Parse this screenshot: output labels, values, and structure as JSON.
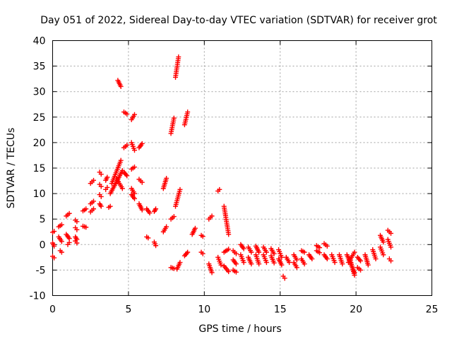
{
  "chart_data": {
    "type": "scatter",
    "title": "Day 051 of 2022, Sidereal Day-to-day VTEC variation (SDTVAR) for receiver grot",
    "xlabel": "GPS time / hours",
    "ylabel": "SDTVAR / TECUs",
    "xlim": [
      0,
      25
    ],
    "ylim": [
      -10,
      40
    ],
    "xticks": [
      0,
      5,
      10,
      15,
      20,
      25
    ],
    "yticks": [
      -10,
      -5,
      0,
      5,
      10,
      15,
      20,
      25,
      30,
      35,
      40
    ],
    "xtick_labels": [
      "0",
      "5",
      "10",
      "15",
      "20",
      "25"
    ],
    "ytick_labels": [
      "-10",
      "-5",
      "0",
      "5",
      "10",
      "15",
      "20",
      "25",
      "30",
      "35",
      "40"
    ],
    "grid": true,
    "marker": "+",
    "color": "#ff0000",
    "segments": [
      {
        "x": [
          0.0,
          0.1
        ],
        "y": [
          2.4,
          2.6
        ]
      },
      {
        "x": [
          0.0,
          0.1
        ],
        "y": [
          0.3,
          -0.3
        ]
      },
      {
        "x": [
          0.0,
          0.1
        ],
        "y": [
          -2.3,
          -2.6
        ]
      },
      {
        "x": [
          0.4,
          0.6
        ],
        "y": [
          3.5,
          3.9
        ]
      },
      {
        "x": [
          0.4,
          0.6
        ],
        "y": [
          1.5,
          0.6
        ]
      },
      {
        "x": [
          0.5,
          0.6
        ],
        "y": [
          -1.2,
          -1.5
        ]
      },
      {
        "x": [
          0.9,
          1.1
        ],
        "y": [
          5.6,
          6.1
        ]
      },
      {
        "x": [
          0.9,
          1.1
        ],
        "y": [
          2.0,
          1.2
        ]
      },
      {
        "x": [
          1.0,
          1.1
        ],
        "y": [
          0.0,
          0.4
        ]
      },
      {
        "x": [
          1.5,
          1.6
        ],
        "y": [
          4.8,
          4.5
        ]
      },
      {
        "x": [
          1.5,
          1.6
        ],
        "y": [
          3.3,
          2.9
        ]
      },
      {
        "x": [
          1.5,
          1.6
        ],
        "y": [
          1.5,
          1.0
        ]
      },
      {
        "x": [
          1.5,
          1.6
        ],
        "y": [
          0.7,
          0.3
        ]
      },
      {
        "x": [
          2.0,
          2.2
        ],
        "y": [
          6.6,
          7.0
        ]
      },
      {
        "x": [
          2.0,
          2.2
        ],
        "y": [
          3.6,
          3.4
        ]
      },
      {
        "x": [
          2.5,
          2.7
        ],
        "y": [
          12.0,
          12.6
        ]
      },
      {
        "x": [
          2.5,
          2.7
        ],
        "y": [
          8.0,
          8.5
        ]
      },
      {
        "x": [
          2.5,
          2.7
        ],
        "y": [
          6.4,
          7.0
        ]
      },
      {
        "x": [
          3.1,
          3.2
        ],
        "y": [
          14.2,
          13.8
        ]
      },
      {
        "x": [
          3.1,
          3.2
        ],
        "y": [
          11.8,
          11.4
        ]
      },
      {
        "x": [
          3.1,
          3.2
        ],
        "y": [
          9.8,
          9.4
        ]
      },
      {
        "x": [
          3.1,
          3.2
        ],
        "y": [
          8.0,
          7.5
        ]
      },
      {
        "x": [
          3.5,
          3.6
        ],
        "y": [
          12.6,
          13.2
        ]
      },
      {
        "x": [
          3.5,
          3.6
        ],
        "y": [
          10.8,
          11.2
        ]
      },
      {
        "x": [
          3.7,
          3.8
        ],
        "y": [
          7.3,
          7.5
        ]
      },
      {
        "x": [
          3.8,
          4.6
        ],
        "y": [
          10.0,
          14.5
        ]
      },
      {
        "x": [
          3.9,
          4.5
        ],
        "y": [
          12.0,
          16.5
        ]
      },
      {
        "x": [
          4.2,
          4.6
        ],
        "y": [
          13.0,
          11.0
        ]
      },
      {
        "x": [
          4.3,
          4.5
        ],
        "y": [
          32.2,
          31.0
        ]
      },
      {
        "x": [
          4.7,
          4.9
        ],
        "y": [
          14.2,
          13.5
        ]
      },
      {
        "x": [
          4.7,
          4.9
        ],
        "y": [
          19.0,
          19.5
        ]
      },
      {
        "x": [
          4.7,
          4.9
        ],
        "y": [
          26.0,
          25.6
        ]
      },
      {
        "x": [
          5.2,
          5.4
        ],
        "y": [
          24.5,
          25.5
        ]
      },
      {
        "x": [
          5.2,
          5.4
        ],
        "y": [
          20.0,
          18.5
        ]
      },
      {
        "x": [
          5.2,
          5.4
        ],
        "y": [
          14.8,
          15.2
        ]
      },
      {
        "x": [
          5.2,
          5.4
        ],
        "y": [
          11.0,
          10.0
        ]
      },
      {
        "x": [
          5.2,
          5.4
        ],
        "y": [
          9.8,
          9.0
        ]
      },
      {
        "x": [
          5.7,
          5.9
        ],
        "y": [
          19.0,
          19.8
        ]
      },
      {
        "x": [
          5.7,
          5.9
        ],
        "y": [
          12.8,
          12.2
        ]
      },
      {
        "x": [
          5.7,
          5.9
        ],
        "y": [
          8.0,
          6.8
        ]
      },
      {
        "x": [
          6.2,
          6.4
        ],
        "y": [
          7.0,
          6.2
        ]
      },
      {
        "x": [
          6.2,
          6.3
        ],
        "y": [
          1.5,
          1.3
        ]
      },
      {
        "x": [
          6.7,
          6.8
        ],
        "y": [
          6.5,
          7.0
        ]
      },
      {
        "x": [
          6.7,
          6.8
        ],
        "y": [
          0.5,
          -0.2
        ]
      },
      {
        "x": [
          7.3,
          7.5
        ],
        "y": [
          11.0,
          13.0
        ]
      },
      {
        "x": [
          7.3,
          7.5
        ],
        "y": [
          2.5,
          3.5
        ]
      },
      {
        "x": [
          7.8,
          8.0
        ],
        "y": [
          5.0,
          5.5
        ]
      },
      {
        "x": [
          7.8,
          8.0
        ],
        "y": [
          21.8,
          24.8
        ]
      },
      {
        "x": [
          7.8,
          8.0
        ],
        "y": [
          -4.5,
          -4.7
        ]
      },
      {
        "x": [
          8.1,
          8.3
        ],
        "y": [
          32.8,
          36.8
        ]
      },
      {
        "x": [
          8.1,
          8.4
        ],
        "y": [
          7.5,
          10.8
        ]
      },
      {
        "x": [
          8.2,
          8.4
        ],
        "y": [
          -4.8,
          -3.5
        ]
      },
      {
        "x": [
          8.7,
          8.9
        ],
        "y": [
          23.5,
          26.0
        ]
      },
      {
        "x": [
          8.7,
          8.9
        ],
        "y": [
          -2.2,
          -1.5
        ]
      },
      {
        "x": [
          9.2,
          9.4
        ],
        "y": [
          2.0,
          3.2
        ]
      },
      {
        "x": [
          9.8,
          9.9
        ],
        "y": [
          1.8,
          1.6
        ]
      },
      {
        "x": [
          9.8,
          9.9
        ],
        "y": [
          -1.5,
          -1.8
        ]
      },
      {
        "x": [
          10.3,
          10.5
        ],
        "y": [
          5.0,
          5.6
        ]
      },
      {
        "x": [
          10.3,
          10.5
        ],
        "y": [
          -3.8,
          -5.5
        ]
      },
      {
        "x": [
          10.9,
          11.0
        ],
        "y": [
          10.5,
          10.8
        ]
      },
      {
        "x": [
          10.9,
          11.1
        ],
        "y": [
          -2.5,
          -4.0
        ]
      },
      {
        "x": [
          11.3,
          11.6
        ],
        "y": [
          7.5,
          2.0
        ]
      },
      {
        "x": [
          11.3,
          11.6
        ],
        "y": [
          -1.5,
          -0.9
        ]
      },
      {
        "x": [
          11.3,
          11.6
        ],
        "y": [
          -4.2,
          -5.3
        ]
      },
      {
        "x": [
          11.9,
          12.1
        ],
        "y": [
          -1.2,
          -1.8
        ]
      },
      {
        "x": [
          11.9,
          12.1
        ],
        "y": [
          -3.0,
          -3.8
        ]
      },
      {
        "x": [
          11.9,
          12.1
        ],
        "y": [
          -5.0,
          -5.4
        ]
      },
      {
        "x": [
          12.4,
          12.6
        ],
        "y": [
          0.0,
          -0.8
        ]
      },
      {
        "x": [
          12.4,
          12.6
        ],
        "y": [
          -2.0,
          -3.5
        ]
      },
      {
        "x": [
          12.9,
          13.1
        ],
        "y": [
          -0.5,
          -1.5
        ]
      },
      {
        "x": [
          12.9,
          13.1
        ],
        "y": [
          -2.5,
          -3.8
        ]
      },
      {
        "x": [
          13.4,
          13.6
        ],
        "y": [
          -0.3,
          -1.5
        ]
      },
      {
        "x": [
          13.4,
          13.6
        ],
        "y": [
          -2.0,
          -3.8
        ]
      },
      {
        "x": [
          13.9,
          14.1
        ],
        "y": [
          -0.5,
          -1.5
        ]
      },
      {
        "x": [
          13.9,
          14.1
        ],
        "y": [
          -2.0,
          -3.5
        ]
      },
      {
        "x": [
          14.4,
          14.6
        ],
        "y": [
          -0.8,
          -1.8
        ]
      },
      {
        "x": [
          14.4,
          14.6
        ],
        "y": [
          -2.2,
          -3.6
        ]
      },
      {
        "x": [
          14.9,
          15.1
        ],
        "y": [
          -1.0,
          -2.5
        ]
      },
      {
        "x": [
          14.9,
          15.1
        ],
        "y": [
          -2.8,
          -4.0
        ]
      },
      {
        "x": [
          15.2,
          15.3
        ],
        "y": [
          -6.2,
          -6.6
        ]
      },
      {
        "x": [
          15.4,
          15.6
        ],
        "y": [
          -2.5,
          -3.5
        ]
      },
      {
        "x": [
          15.9,
          16.1
        ],
        "y": [
          -2.0,
          -3.0
        ]
      },
      {
        "x": [
          15.9,
          16.1
        ],
        "y": [
          -3.5,
          -4.5
        ]
      },
      {
        "x": [
          16.4,
          16.6
        ],
        "y": [
          -1.2,
          -1.5
        ]
      },
      {
        "x": [
          16.4,
          16.6
        ],
        "y": [
          -2.8,
          -3.8
        ]
      },
      {
        "x": [
          16.9,
          17.1
        ],
        "y": [
          -2.0,
          -2.8
        ]
      },
      {
        "x": [
          17.4,
          17.6
        ],
        "y": [
          -0.2,
          -0.6
        ]
      },
      {
        "x": [
          17.4,
          17.6
        ],
        "y": [
          -1.2,
          -1.6
        ]
      },
      {
        "x": [
          17.9,
          18.1
        ],
        "y": [
          0.2,
          -0.3
        ]
      },
      {
        "x": [
          17.9,
          18.1
        ],
        "y": [
          -2.0,
          -2.8
        ]
      },
      {
        "x": [
          18.4,
          18.6
        ],
        "y": [
          -2.0,
          -3.5
        ]
      },
      {
        "x": [
          18.9,
          19.1
        ],
        "y": [
          -2.0,
          -3.8
        ]
      },
      {
        "x": [
          19.4,
          19.9
        ],
        "y": [
          -2.0,
          -5.5
        ]
      },
      {
        "x": [
          19.5,
          19.9
        ],
        "y": [
          -3.5,
          -1.5
        ]
      },
      {
        "x": [
          19.6,
          19.9
        ],
        "y": [
          -2.8,
          -6.0
        ]
      },
      {
        "x": [
          20.1,
          20.3
        ],
        "y": [
          -4.5,
          -5.0
        ]
      },
      {
        "x": [
          20.1,
          20.3
        ],
        "y": [
          -2.5,
          -3.2
        ]
      },
      {
        "x": [
          20.6,
          20.8
        ],
        "y": [
          -2.0,
          -4.0
        ]
      },
      {
        "x": [
          21.1,
          21.3
        ],
        "y": [
          -1.0,
          -2.8
        ]
      },
      {
        "x": [
          21.6,
          21.8
        ],
        "y": [
          1.8,
          0.5
        ]
      },
      {
        "x": [
          21.6,
          21.8
        ],
        "y": [
          -0.5,
          -2.0
        ]
      },
      {
        "x": [
          22.1,
          22.3
        ],
        "y": [
          2.8,
          2.2
        ]
      },
      {
        "x": [
          22.1,
          22.3
        ],
        "y": [
          1.0,
          -0.5
        ]
      },
      {
        "x": [
          22.2,
          22.3
        ],
        "y": [
          -2.8,
          -3.2
        ]
      }
    ]
  }
}
